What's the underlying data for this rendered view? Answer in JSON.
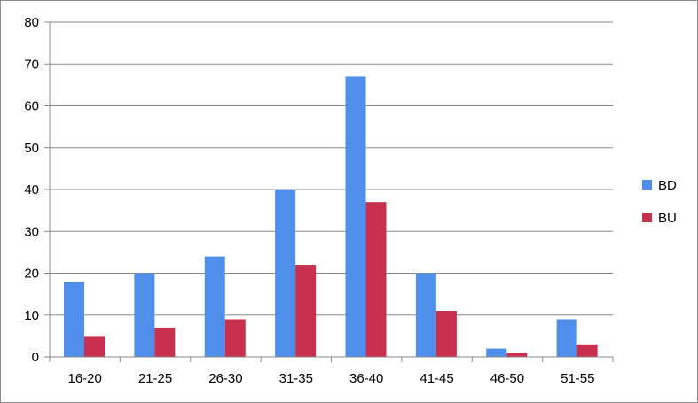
{
  "chart_data": {
    "type": "bar",
    "title": "",
    "xlabel": "",
    "ylabel": "",
    "categories": [
      "16-20",
      "21-25",
      "26-30",
      "31-35",
      "36-40",
      "41-45",
      "46-50",
      "51-55"
    ],
    "series": [
      {
        "name": "BD",
        "color": "#4F8FEB",
        "values": [
          18,
          20,
          24,
          40,
          67,
          20,
          2,
          9
        ]
      },
      {
        "name": "BU",
        "color": "#C8304D",
        "values": [
          5,
          7,
          9,
          22,
          37,
          11,
          1,
          3
        ]
      }
    ],
    "ylim": [
      0,
      80
    ],
    "yticks": [
      0,
      10,
      20,
      30,
      40,
      50,
      60,
      70,
      80
    ],
    "grid": true,
    "legend": "right"
  }
}
